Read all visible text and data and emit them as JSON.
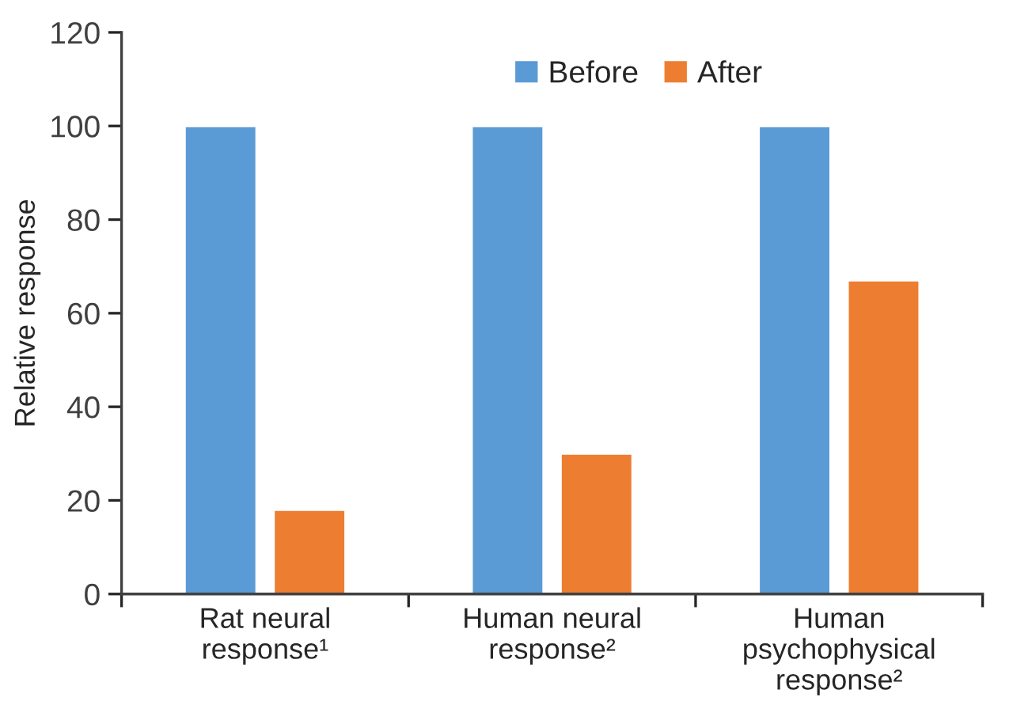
{
  "chart_data": {
    "type": "bar",
    "ylabel": "Relative response",
    "categories": [
      "Rat neural\nresponse¹",
      "Human neural\nresponse²",
      "Human\npsychophysical\nresponse²"
    ],
    "series": [
      {
        "name": "Before",
        "color": "#5b9bd5",
        "values": [
          100,
          100,
          100
        ]
      },
      {
        "name": "After",
        "color": "#ed7d31",
        "values": [
          18,
          30,
          67
        ]
      }
    ],
    "ylim": [
      0,
      120
    ],
    "yticks": [
      0,
      20,
      40,
      60,
      80,
      100,
      120
    ],
    "grid": false,
    "legend": "top"
  }
}
